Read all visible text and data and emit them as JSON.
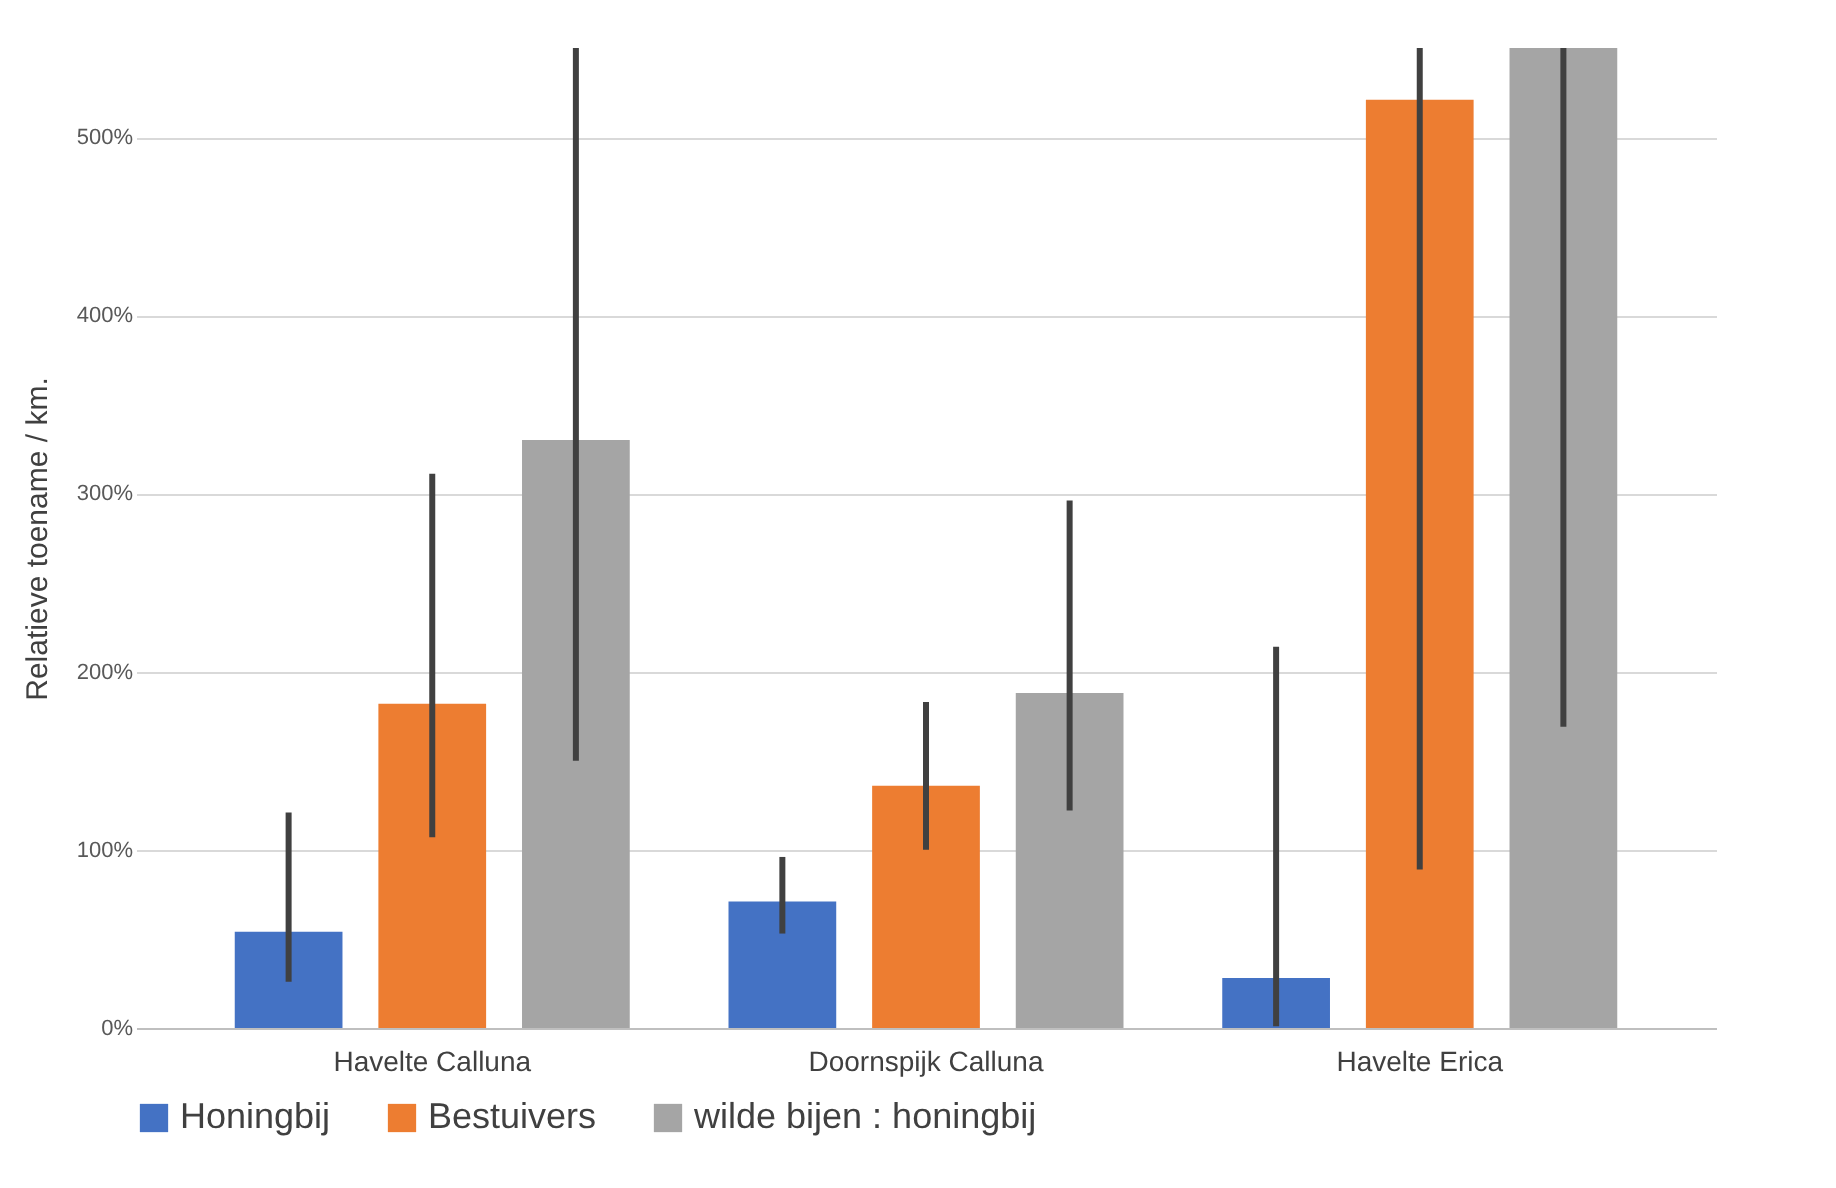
{
  "chart_data": {
    "type": "bar",
    "ylabel": "Relatieve toename / km.",
    "categories": [
      "Havelte Calluna",
      "Doornspijk Calluna",
      "Havelte Erica"
    ],
    "series": [
      {
        "name": "Honingbij",
        "color": "#4472c4",
        "values": [
          54,
          71,
          28
        ],
        "errors": [
          [
            26,
            121
          ],
          [
            53,
            96
          ],
          [
            1,
            214
          ]
        ]
      },
      {
        "name": "Bestuivers",
        "color": "#ed7d31",
        "values": [
          182,
          136,
          521
        ],
        "errors": [
          [
            107,
            311
          ],
          [
            100,
            183
          ],
          [
            89,
            550
          ]
        ]
      },
      {
        "name": "wilde bijen : honingbij",
        "color": "#a5a5a5",
        "values": [
          330,
          188,
          550
        ],
        "errors": [
          [
            150,
            550
          ],
          [
            122,
            296
          ],
          [
            169,
            550
          ]
        ]
      }
    ],
    "ylim": [
      0,
      550
    ],
    "yticks": [
      {
        "value": 0,
        "label": "0%"
      },
      {
        "value": 100,
        "label": "100%"
      },
      {
        "value": 200,
        "label": "200%"
      },
      {
        "value": 300,
        "label": "300%"
      },
      {
        "value": 400,
        "label": "400%"
      },
      {
        "value": 500,
        "label": "500%"
      }
    ],
    "grid": "y",
    "legend": "bottom"
  }
}
